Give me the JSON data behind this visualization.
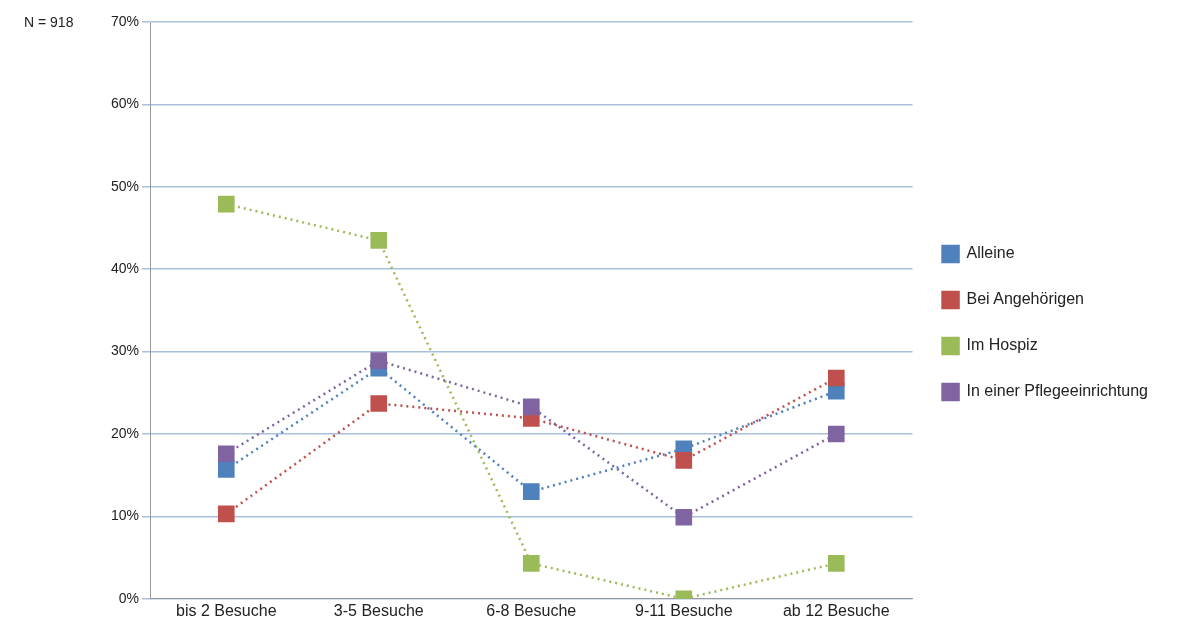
{
  "chart_data": {
    "type": "line",
    "annotations": [
      "N = 918"
    ],
    "categories": [
      "bis 2 Besuche",
      "3-5 Besuche",
      "6-8 Besuche",
      "9-11 Besuche",
      "ab 12 Besuche"
    ],
    "series": [
      {
        "name": "Alleine",
        "color": "#4f81bd",
        "values": [
          15.7,
          28,
          13,
          18.2,
          25.2
        ]
      },
      {
        "name": "Bei Angehörigen",
        "color": "#c0504d",
        "values": [
          10.3,
          23.7,
          21.9,
          16.8,
          26.8
        ]
      },
      {
        "name": "Im Hospiz",
        "color": "#9bbb59",
        "values": [
          47.9,
          43.5,
          4.3,
          0,
          4.3
        ]
      },
      {
        "name": "In einer Pflegeeinrichtung",
        "color": "#8064a2",
        "values": [
          17.6,
          28.9,
          23.3,
          9.9,
          20
        ]
      }
    ],
    "ylim": [
      0,
      70
    ],
    "yticks": [
      {
        "value": 0,
        "label": "0%"
      },
      {
        "value": 10,
        "label": "10%"
      },
      {
        "value": 20,
        "label": "20%"
      },
      {
        "value": 30,
        "label": "30%"
      },
      {
        "value": 40,
        "label": "40%"
      },
      {
        "value": 50,
        "label": "50%"
      },
      {
        "value": 60,
        "label": "60%"
      },
      {
        "value": 70,
        "label": "70%"
      }
    ],
    "grid": "y",
    "legend": "right",
    "marker": "square",
    "line_style": "dotted"
  }
}
